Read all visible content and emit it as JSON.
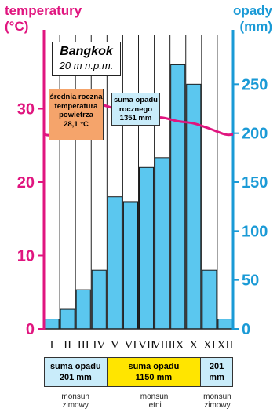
{
  "axis_left_title": {
    "line1": "temperatury",
    "line2": "(°C)"
  },
  "axis_right_title": {
    "line1": "opady",
    "line2": "(mm)"
  },
  "city": {
    "name": "Bangkok",
    "elevation": "20 m n.p.m."
  },
  "info_temp": {
    "line1": "średnia roczna",
    "line2": "temperatura",
    "line3": "powietrza",
    "line4": "28,1 °C"
  },
  "info_rain": {
    "line1": "suma opadu",
    "line2": "rocznego",
    "line3": "1351 mm"
  },
  "colors": {
    "temperature": "#e0157f",
    "precipitation": "#1a9ad6",
    "bar_fill": "#5bc7ef",
    "temp_box": "#f5a46b",
    "rain_box": "#c9ecfa",
    "summer_cell": "#ffe500",
    "winter_cell": "#c9ecfa"
  },
  "chart_data": {
    "type": "bar",
    "categories": [
      "I",
      "II",
      "III",
      "IV",
      "V",
      "VI",
      "VII",
      "VIII",
      "IX",
      "X",
      "XI",
      "XII"
    ],
    "series": [
      {
        "name": "opady",
        "type": "bar",
        "axis": "right",
        "values": [
          10,
          20,
          40,
          60,
          135,
          130,
          165,
          175,
          270,
          250,
          60,
          10
        ]
      },
      {
        "name": "temperatury",
        "type": "line",
        "axis": "left",
        "values": [
          26.5,
          28,
          29.5,
          30.5,
          30,
          29.3,
          28.8,
          28.8,
          28.3,
          28,
          27.3,
          26.5
        ]
      }
    ],
    "y_left": {
      "ylim": [
        0,
        40
      ],
      "ticks": [
        0,
        10,
        20,
        30
      ]
    },
    "y_right": {
      "ylim": [
        0,
        300
      ],
      "ticks": [
        0,
        50,
        100,
        150,
        200,
        250
      ]
    },
    "grid": "vertical"
  },
  "seasons": [
    {
      "sum_label": "suma opadu",
      "sum_value": "201 mm",
      "name_line1": "monsun",
      "name_line2": "zimowy",
      "months": 4
    },
    {
      "sum_label": "suma opadu",
      "sum_value": "1150 mm",
      "name_line1": "monsun",
      "name_line2": "letni",
      "months": 6
    },
    {
      "sum_label": "201",
      "sum_value": "mm",
      "name_line1": "monsun",
      "name_line2": "zimowy",
      "months": 2
    }
  ]
}
